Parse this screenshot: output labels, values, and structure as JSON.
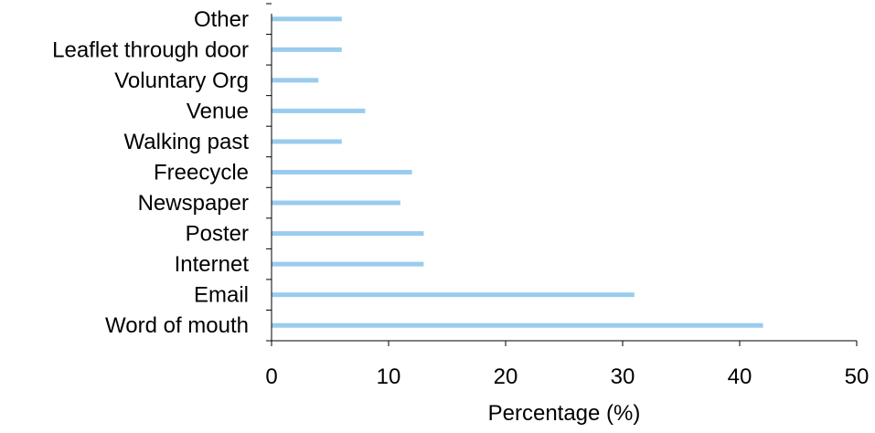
{
  "chart_data": {
    "type": "bar",
    "orientation": "horizontal",
    "categories": [
      "Word of mouth",
      "Email",
      "Internet",
      "Poster",
      "Newspaper",
      "Freecycle",
      "Walking past",
      "Venue",
      "Voluntary Org",
      "Leaflet through door",
      "Other"
    ],
    "values": [
      42,
      31,
      13,
      13,
      11,
      12,
      6,
      8,
      4,
      6,
      6
    ],
    "title": "",
    "xlabel": "Percentage (%)",
    "ylabel": "",
    "xlim": [
      0,
      50
    ],
    "xticks": [
      0,
      10,
      20,
      30,
      40,
      50
    ],
    "xtick_labels": [
      "0",
      "10",
      "20",
      "30",
      "40",
      "50"
    ],
    "grid": false,
    "legend": "none",
    "bar_color": "#99ccee"
  }
}
